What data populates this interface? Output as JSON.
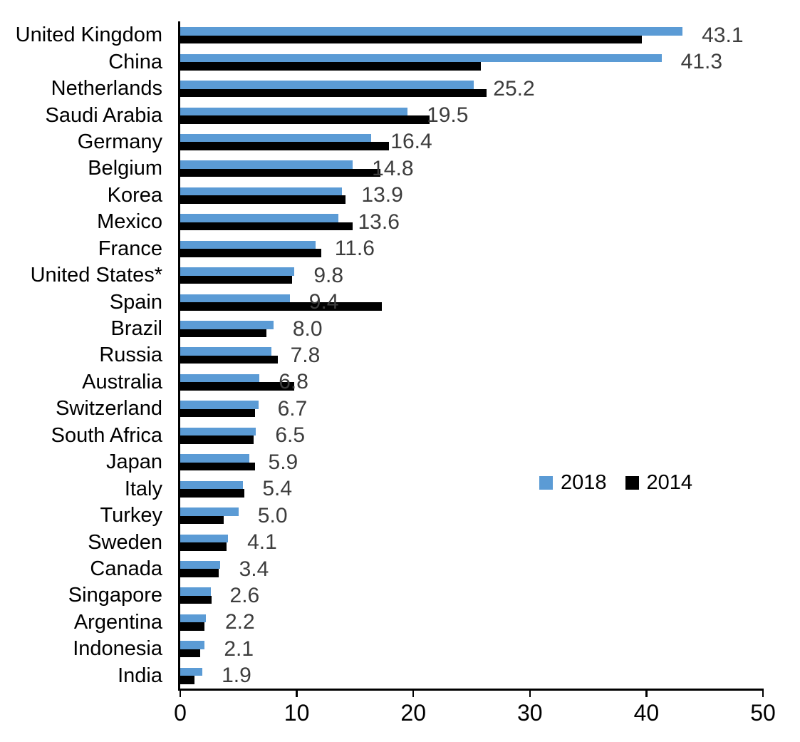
{
  "chart_data": {
    "type": "bar",
    "orientation": "horizontal",
    "categories": [
      "United Kingdom",
      "China",
      "Netherlands",
      "Saudi Arabia",
      "Germany",
      "Belgium",
      "Korea",
      "Mexico",
      "France",
      "United States*",
      "Spain",
      "Brazil",
      "Russia",
      "Australia",
      "Switzerland",
      "South Africa",
      "Japan",
      "Italy",
      "Turkey",
      "Sweden",
      "Canada",
      "Singapore",
      "Argentina",
      "Indonesia",
      "India"
    ],
    "series": [
      {
        "name": "2018",
        "color": "#5B9BD5",
        "values": [
          43.1,
          41.3,
          25.2,
          19.5,
          16.4,
          14.8,
          13.9,
          13.6,
          11.6,
          9.8,
          9.4,
          8.0,
          7.8,
          6.8,
          6.7,
          6.5,
          5.9,
          5.4,
          5.0,
          4.1,
          3.4,
          2.6,
          2.2,
          2.1,
          1.9
        ]
      },
      {
        "name": "2014",
        "color": "#000000",
        "values": [
          39.6,
          25.8,
          26.3,
          21.4,
          17.9,
          17.2,
          14.2,
          14.8,
          12.1,
          9.6,
          17.3,
          7.4,
          8.4,
          9.8,
          6.4,
          6.3,
          6.4,
          5.5,
          3.7,
          4.0,
          3.3,
          2.7,
          2.1,
          1.7,
          1.2
        ]
      }
    ],
    "data_labels": [
      "43.1",
      "41.3",
      "25.2",
      "19.5",
      "16.4",
      "14.8",
      "13.9",
      "13.6",
      "11.6",
      "9.8",
      "9.4",
      "8.0",
      "7.8",
      "6.8",
      "6.7",
      "6.5",
      "5.9",
      "5.4",
      "5.0",
      "4.1",
      "3.4",
      "2.6",
      "2.2",
      "2.1",
      "1.9"
    ],
    "data_labels_series": "2018",
    "xlim": [
      0,
      50
    ],
    "xticks": [
      "0",
      "10",
      "20",
      "30",
      "40",
      "50"
    ],
    "grid": false,
    "legend": {
      "position": "middle-right",
      "entries": [
        "2018",
        "2014"
      ]
    },
    "colors": {
      "bar_2018": "#5B9BD5",
      "bar_2014": "#000000",
      "data_label_text": "#3d3d3d",
      "axis": "#000000"
    }
  }
}
